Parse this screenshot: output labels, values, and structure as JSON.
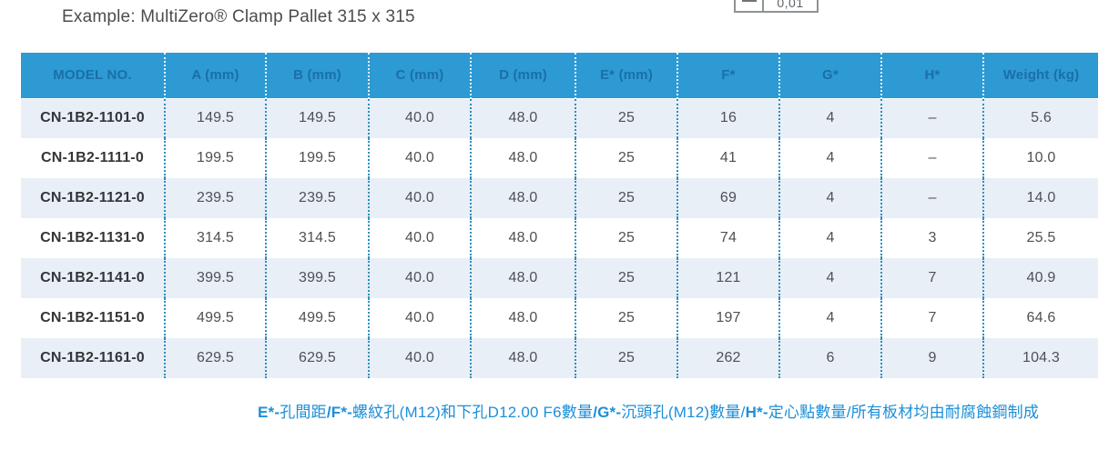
{
  "page": {
    "title": "Example: MultiZero® Clamp Pallet 315 x 315"
  },
  "tolerance_callout": {
    "symbol": "straightness-symbol",
    "value": "0,01"
  },
  "table": {
    "columns": [
      "MODEL NO.",
      "A (mm)",
      "B (mm)",
      "C (mm)",
      "D (mm)",
      "E* (mm)",
      "F*",
      "G*",
      "H*",
      "Weight (kg)"
    ],
    "rows": [
      [
        "CN-1B2-1101-0",
        "149.5",
        "149.5",
        "40.0",
        "48.0",
        "25",
        "16",
        "4",
        "–",
        "5.6"
      ],
      [
        "CN-1B2-1111-0",
        "199.5",
        "199.5",
        "40.0",
        "48.0",
        "25",
        "41",
        "4",
        "–",
        "10.0"
      ],
      [
        "CN-1B2-1121-0",
        "239.5",
        "239.5",
        "40.0",
        "48.0",
        "25",
        "69",
        "4",
        "–",
        "14.0"
      ],
      [
        "CN-1B2-1131-0",
        "314.5",
        "314.5",
        "40.0",
        "48.0",
        "25",
        "74",
        "4",
        "3",
        "25.5"
      ],
      [
        "CN-1B2-1141-0",
        "399.5",
        "399.5",
        "40.0",
        "48.0",
        "25",
        "121",
        "4",
        "7",
        "40.9"
      ],
      [
        "CN-1B2-1151-0",
        "499.5",
        "499.5",
        "40.0",
        "48.0",
        "25",
        "197",
        "4",
        "7",
        "64.6"
      ],
      [
        "CN-1B2-1161-0",
        "629.5",
        "629.5",
        "40.0",
        "48.0",
        "25",
        "262",
        "6",
        "9",
        "104.3"
      ]
    ]
  },
  "footnote": {
    "parts": [
      {
        "t": "E*-",
        "bold": true
      },
      {
        "t": "孔間距",
        "bold": false
      },
      {
        "t": "/F*-",
        "bold": true
      },
      {
        "t": "螺紋孔(M12)和下孔D12.00 F6數量",
        "bold": false
      },
      {
        "t": "/G*-",
        "bold": true
      },
      {
        "t": "沉頭孔(M12)數量/",
        "bold": false
      },
      {
        "t": "H*-",
        "bold": true
      },
      {
        "t": "定心點數量/所有板材均由耐腐蝕鋼制成",
        "bold": false
      }
    ]
  },
  "colors": {
    "header_bg": "#2d9ad3",
    "header_text": "#1b6fa8",
    "row_alt_bg": "#e9eff6",
    "body_text": "#4d5154",
    "dotted_divider": "#2e8fc0",
    "footnote_text": "#1b8fd8",
    "title_text": "#4a4d50"
  }
}
